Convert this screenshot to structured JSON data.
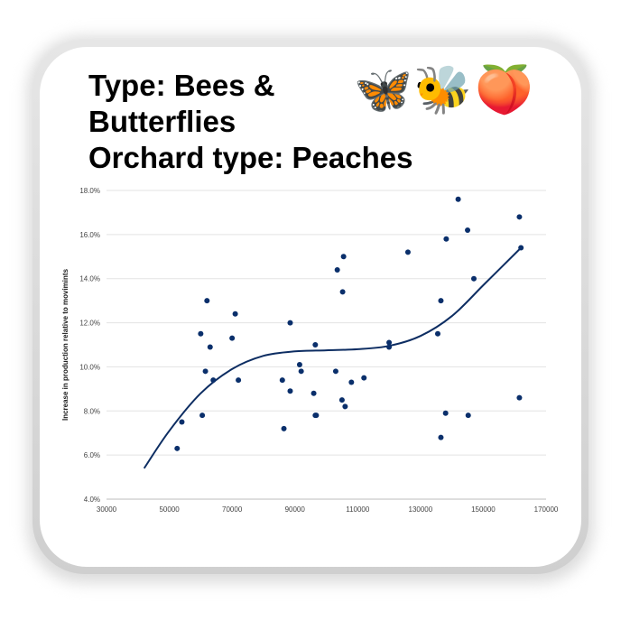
{
  "title_lines": [
    "Type: Bees &",
    "Butterflies",
    "Orchard type: Peaches"
  ],
  "emojis": [
    {
      "name": "butterfly-icon",
      "glyph": "🦋"
    },
    {
      "name": "bee-icon",
      "glyph": "🐝"
    },
    {
      "name": "peach-icon",
      "glyph": "🍑"
    }
  ],
  "chart_data": {
    "type": "scatter",
    "xlabel": "",
    "ylabel": "Increase in production relative to movimints",
    "xlim": [
      30000,
      170000
    ],
    "ylim": [
      4.0,
      18.0
    ],
    "x_ticks": [
      "30000",
      "50000",
      "70000",
      "90000",
      "110000",
      "130000",
      "150000",
      "170000"
    ],
    "y_ticks": [
      "4.0%",
      "6.0%",
      "8.0%",
      "10.0%",
      "12.0%",
      "14.0%",
      "16.0%",
      "18.0%"
    ],
    "grid": "horizontal",
    "points": [
      {
        "x": 52500,
        "y": 6.3
      },
      {
        "x": 54000,
        "y": 7.5
      },
      {
        "x": 60000,
        "y": 11.5
      },
      {
        "x": 60500,
        "y": 7.8
      },
      {
        "x": 61500,
        "y": 9.8
      },
      {
        "x": 62000,
        "y": 13.0
      },
      {
        "x": 63000,
        "y": 10.9
      },
      {
        "x": 64000,
        "y": 9.4
      },
      {
        "x": 70000,
        "y": 11.3
      },
      {
        "x": 71000,
        "y": 12.4
      },
      {
        "x": 72000,
        "y": 9.4
      },
      {
        "x": 86000,
        "y": 9.4
      },
      {
        "x": 86500,
        "y": 7.2
      },
      {
        "x": 88500,
        "y": 8.9
      },
      {
        "x": 88500,
        "y": 12.0
      },
      {
        "x": 91500,
        "y": 10.1
      },
      {
        "x": 92000,
        "y": 9.8
      },
      {
        "x": 96000,
        "y": 8.8
      },
      {
        "x": 96500,
        "y": 11.0
      },
      {
        "x": 96500,
        "y": 7.8
      },
      {
        "x": 96800,
        "y": 7.8
      },
      {
        "x": 103000,
        "y": 9.8
      },
      {
        "x": 103500,
        "y": 14.4
      },
      {
        "x": 105000,
        "y": 8.5
      },
      {
        "x": 105200,
        "y": 13.4
      },
      {
        "x": 105500,
        "y": 15.0
      },
      {
        "x": 106000,
        "y": 8.2
      },
      {
        "x": 108000,
        "y": 9.3
      },
      {
        "x": 112000,
        "y": 9.5
      },
      {
        "x": 120000,
        "y": 11.1
      },
      {
        "x": 120000,
        "y": 10.9
      },
      {
        "x": 126000,
        "y": 15.2
      },
      {
        "x": 135500,
        "y": 11.5
      },
      {
        "x": 136500,
        "y": 13.0
      },
      {
        "x": 136500,
        "y": 6.8
      },
      {
        "x": 138000,
        "y": 7.9
      },
      {
        "x": 138200,
        "y": 15.8
      },
      {
        "x": 142000,
        "y": 17.6
      },
      {
        "x": 145000,
        "y": 16.2
      },
      {
        "x": 145200,
        "y": 7.8
      },
      {
        "x": 147000,
        "y": 14.0
      },
      {
        "x": 161500,
        "y": 16.8
      },
      {
        "x": 161500,
        "y": 8.6
      },
      {
        "x": 162000,
        "y": 15.4
      }
    ],
    "trendline": {
      "type": "polynomial",
      "points": [
        {
          "x": 42000,
          "y": 5.4
        },
        {
          "x": 50000,
          "y": 7.1
        },
        {
          "x": 60000,
          "y": 8.8
        },
        {
          "x": 70000,
          "y": 9.9
        },
        {
          "x": 80000,
          "y": 10.5
        },
        {
          "x": 90000,
          "y": 10.7
        },
        {
          "x": 100000,
          "y": 10.75
        },
        {
          "x": 110000,
          "y": 10.8
        },
        {
          "x": 120000,
          "y": 10.95
        },
        {
          "x": 130000,
          "y": 11.4
        },
        {
          "x": 140000,
          "y": 12.3
        },
        {
          "x": 150000,
          "y": 13.7
        },
        {
          "x": 162000,
          "y": 15.4
        }
      ]
    },
    "marker_color": "#0a2f6b",
    "line_color": "#0d2d62"
  }
}
